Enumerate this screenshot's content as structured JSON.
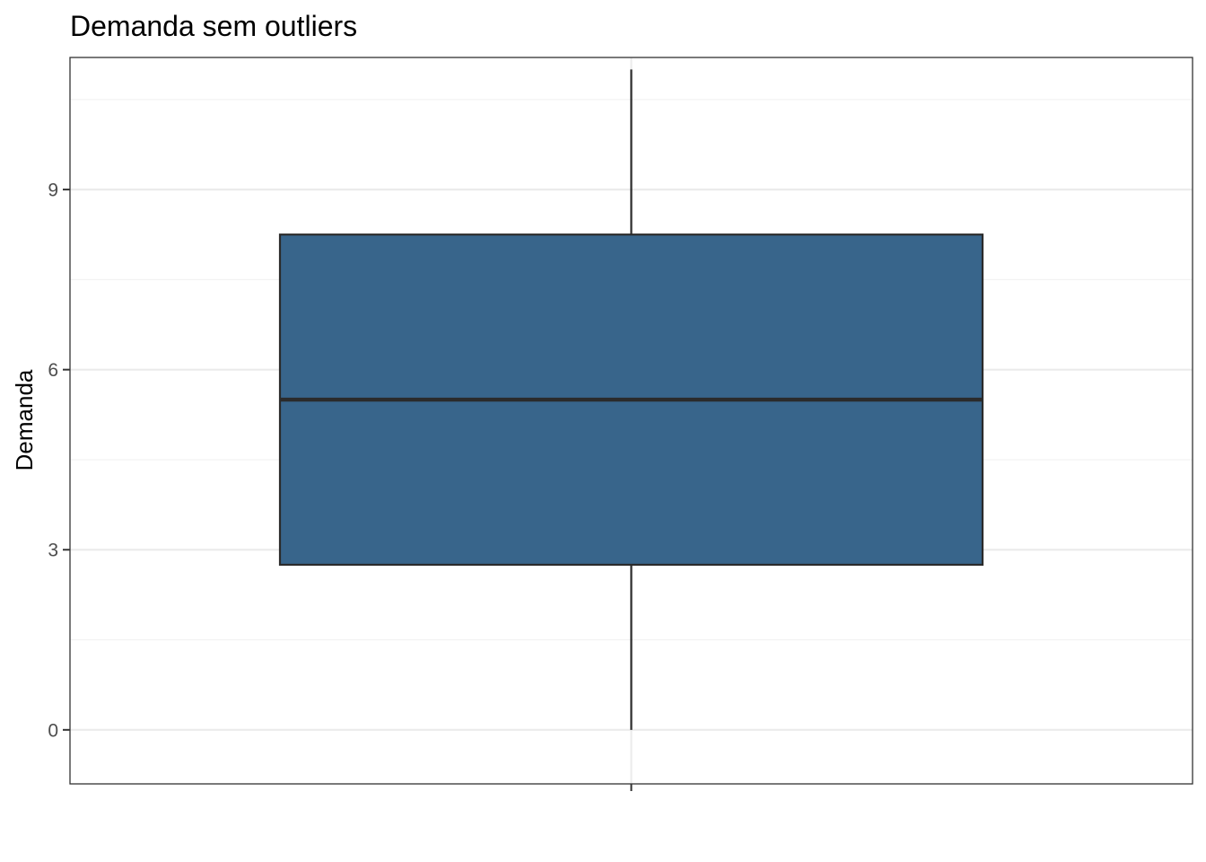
{
  "chart_data": {
    "type": "boxplot",
    "title": "Demanda sem outliers",
    "xlabel": "",
    "ylabel": "Demanda",
    "ylim": [
      -0.9,
      11.2
    ],
    "yticks": [
      0,
      3,
      6,
      9
    ],
    "yticks_labels": [
      "0",
      "3",
      "6",
      "9"
    ],
    "minor_yticks": [
      1.5,
      4.5,
      7.5,
      10.5
    ],
    "grid": true,
    "box": {
      "min": 0,
      "q1": 2.75,
      "median": 5.5,
      "q3": 8.25,
      "max": 11
    },
    "colors": {
      "box_fill": "#38658b",
      "box_stroke": "#2b2b2b",
      "grid_major": "#ebebeb",
      "grid_minor": "#f2f2f2",
      "panel_border": "#333333"
    }
  }
}
